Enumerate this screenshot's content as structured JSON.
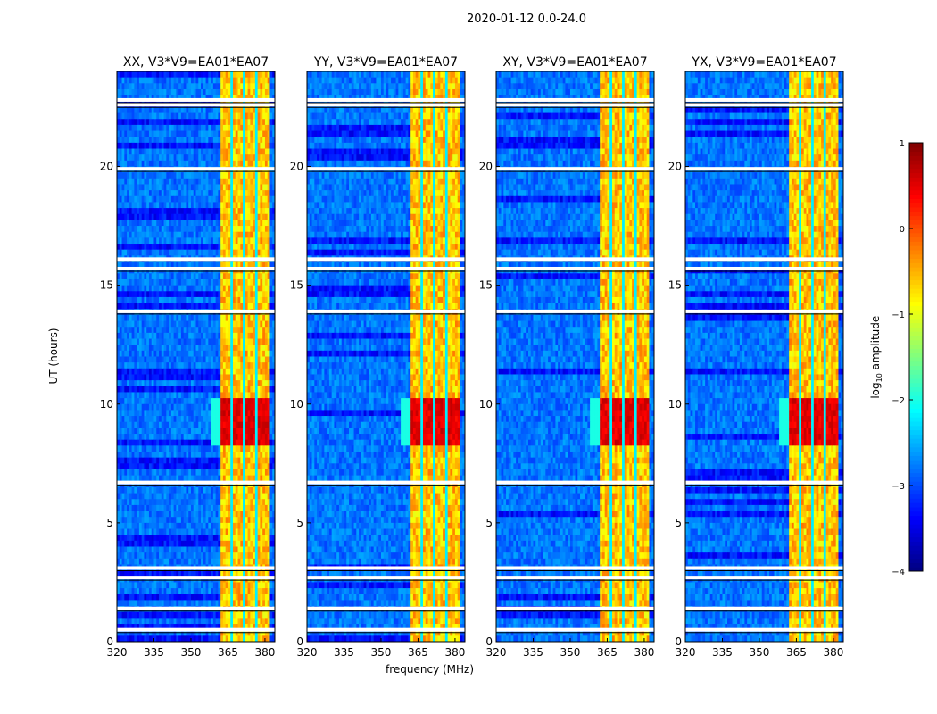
{
  "chart_data": {
    "type": "heatmap",
    "title": "2020-01-12 0.0-24.0",
    "xlabel": "frequency (MHz)",
    "ylabel": "UT (hours)",
    "xlim": [
      320,
      384
    ],
    "ylim": [
      0,
      24
    ],
    "xticks": [
      "320",
      "335",
      "350",
      "365",
      "380"
    ],
    "yticks": [
      "0",
      "5",
      "10",
      "15",
      "20"
    ],
    "panels": [
      {
        "title": "XX, V3*V9=EA01*EA07"
      },
      {
        "title": "YY, V3*V9=EA01*EA07"
      },
      {
        "title": "XY, V3*V9=EA01*EA07"
      },
      {
        "title": "YX, V3*V9=EA01*EA07"
      }
    ],
    "colorbar": {
      "label": "log10 amplitude",
      "label_main": "log",
      "label_sub": "10",
      "label_rest": " amplitude",
      "range": [
        -4,
        1
      ],
      "ticks": [
        "1",
        "0",
        "−1",
        "−2",
        "−3",
        "−4"
      ],
      "colormap": "jet"
    },
    "background_level": -2.8,
    "rfi_band_mhz": [
      362,
      382
    ],
    "rfi_band_level": -0.6,
    "rfi_gaps_mhz": [
      366.5,
      371.5,
      376.5
    ],
    "burst_ut": [
      8.3,
      10.2
    ],
    "burst_level": 0.5,
    "flagged_ut": [
      0.5,
      1.4,
      2.7,
      3.1,
      6.7,
      13.9,
      15.7,
      16.1,
      19.9,
      22.6,
      22.8
    ]
  }
}
